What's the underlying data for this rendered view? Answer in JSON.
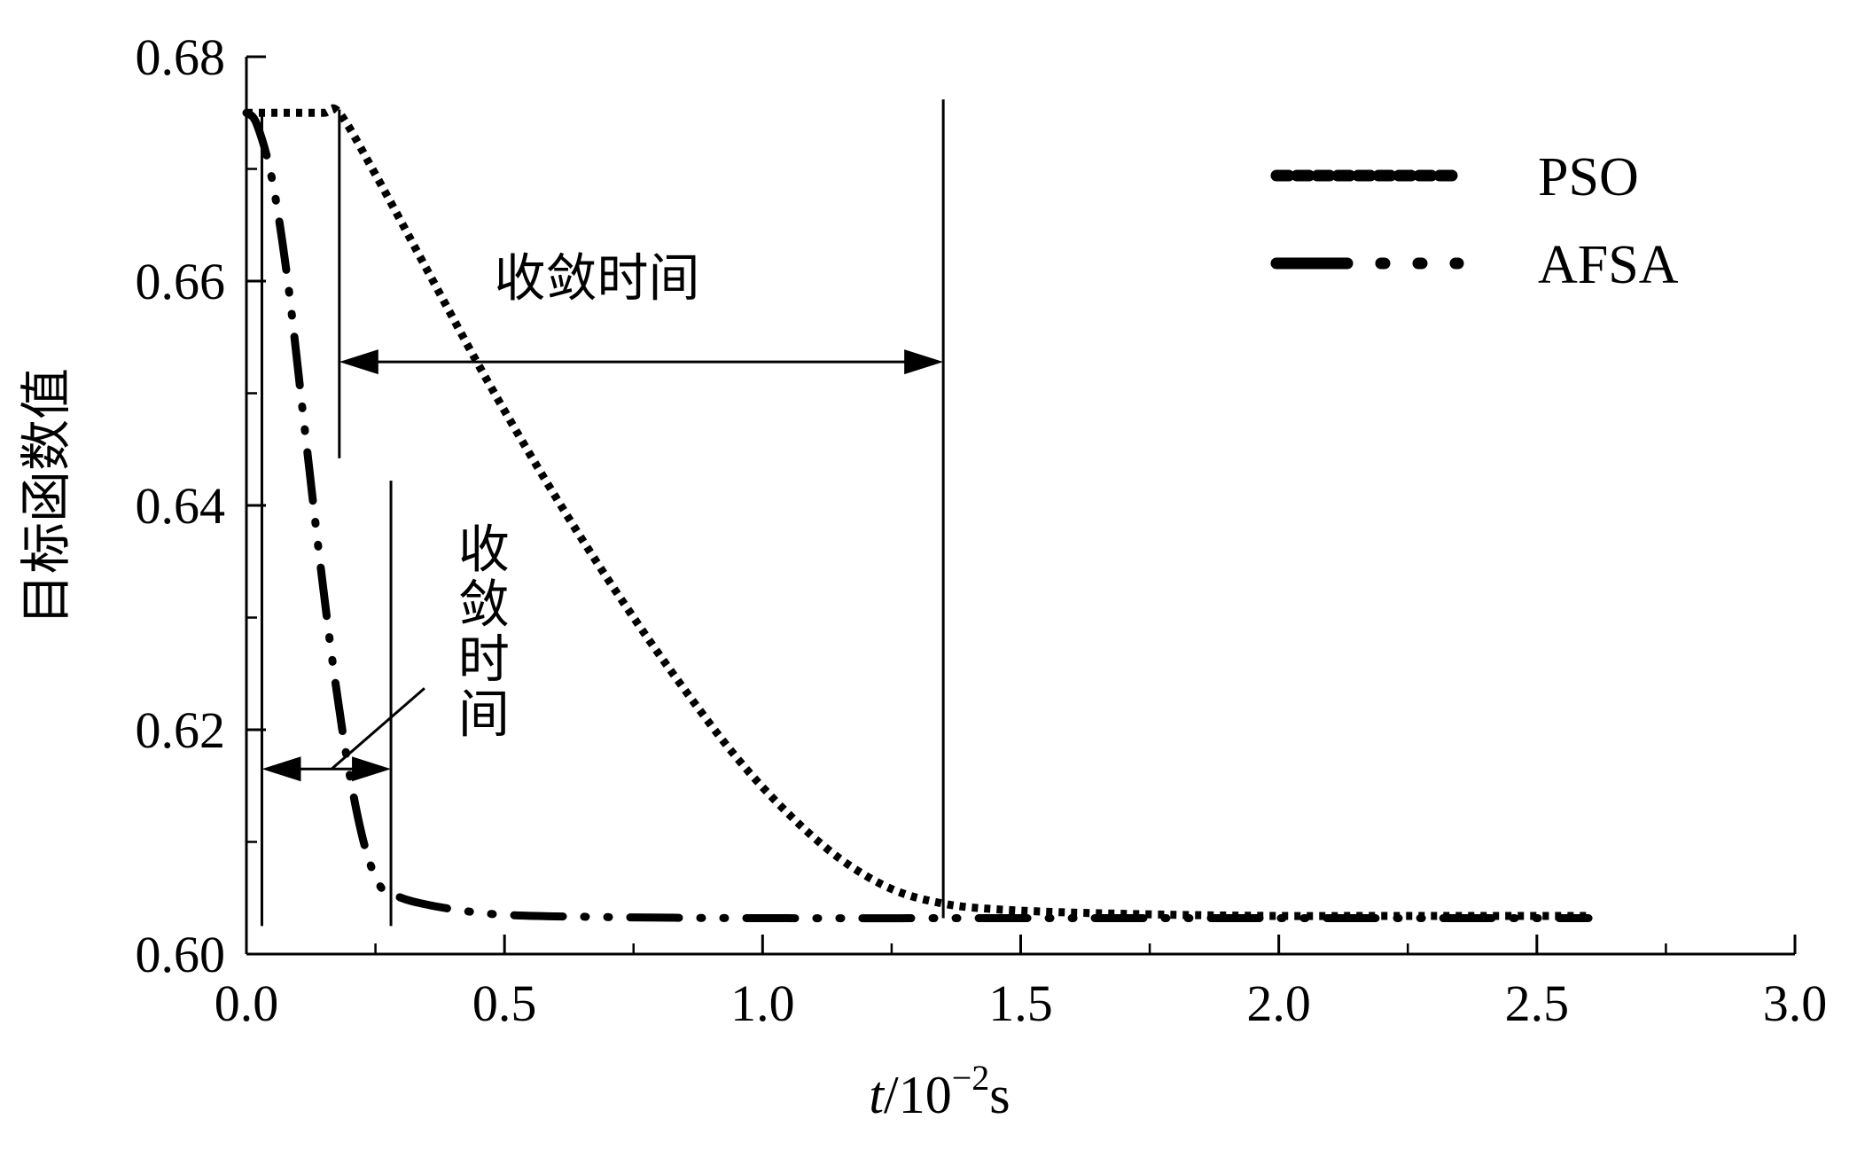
{
  "chart_data": {
    "type": "line",
    "title": "",
    "xlabel_italic": "t",
    "xlabel_rest": "/10",
    "xlabel_exp": "−2",
    "xlabel_unit": "s",
    "ylabel": "目标函数值",
    "xlim": [
      0,
      3.0
    ],
    "ylim": [
      0.6,
      0.68
    ],
    "x_ticks": [
      "0.0",
      "0.5",
      "1.0",
      "1.5",
      "2.0",
      "2.5",
      "3.0"
    ],
    "y_ticks": [
      "0.60",
      "0.62",
      "0.64",
      "0.66",
      "0.68"
    ],
    "grid": false,
    "legend_position": "top-right",
    "series": [
      {
        "name": "PSO",
        "style": "dotted",
        "x": [
          0.0,
          0.05,
          0.1,
          0.15,
          0.18,
          0.25,
          0.35,
          0.45,
          0.55,
          0.65,
          0.75,
          0.85,
          0.95,
          1.05,
          1.15,
          1.25,
          1.35,
          1.45,
          1.6,
          1.8,
          2.0,
          2.2,
          2.4,
          2.6
        ],
        "y": [
          0.675,
          0.675,
          0.675,
          0.675,
          0.675,
          0.6695,
          0.661,
          0.6525,
          0.6445,
          0.637,
          0.63,
          0.6235,
          0.6175,
          0.6125,
          0.6085,
          0.6058,
          0.6045,
          0.604,
          0.6037,
          0.6035,
          0.6034,
          0.6034,
          0.6034,
          0.6034
        ]
      },
      {
        "name": "AFSA",
        "style": "dash-dot-dot",
        "x": [
          0.0,
          0.02,
          0.05,
          0.08,
          0.11,
          0.14,
          0.17,
          0.2,
          0.23,
          0.26,
          0.29,
          0.33,
          0.4,
          0.5,
          0.7,
          1.0,
          1.5,
          2.0,
          2.6
        ],
        "y": [
          0.675,
          0.674,
          0.669,
          0.66,
          0.648,
          0.636,
          0.625,
          0.616,
          0.6095,
          0.606,
          0.6052,
          0.6046,
          0.604,
          0.6035,
          0.6033,
          0.6032,
          0.6032,
          0.6032,
          0.6032
        ]
      }
    ],
    "annotations": [
      {
        "text": "收敛时间",
        "target": "PSO",
        "x_start": 0.18,
        "x_end": 1.35
      },
      {
        "text": "收敛时间",
        "target": "AFSA",
        "x_start": 0.03,
        "x_end": 0.28
      }
    ]
  }
}
